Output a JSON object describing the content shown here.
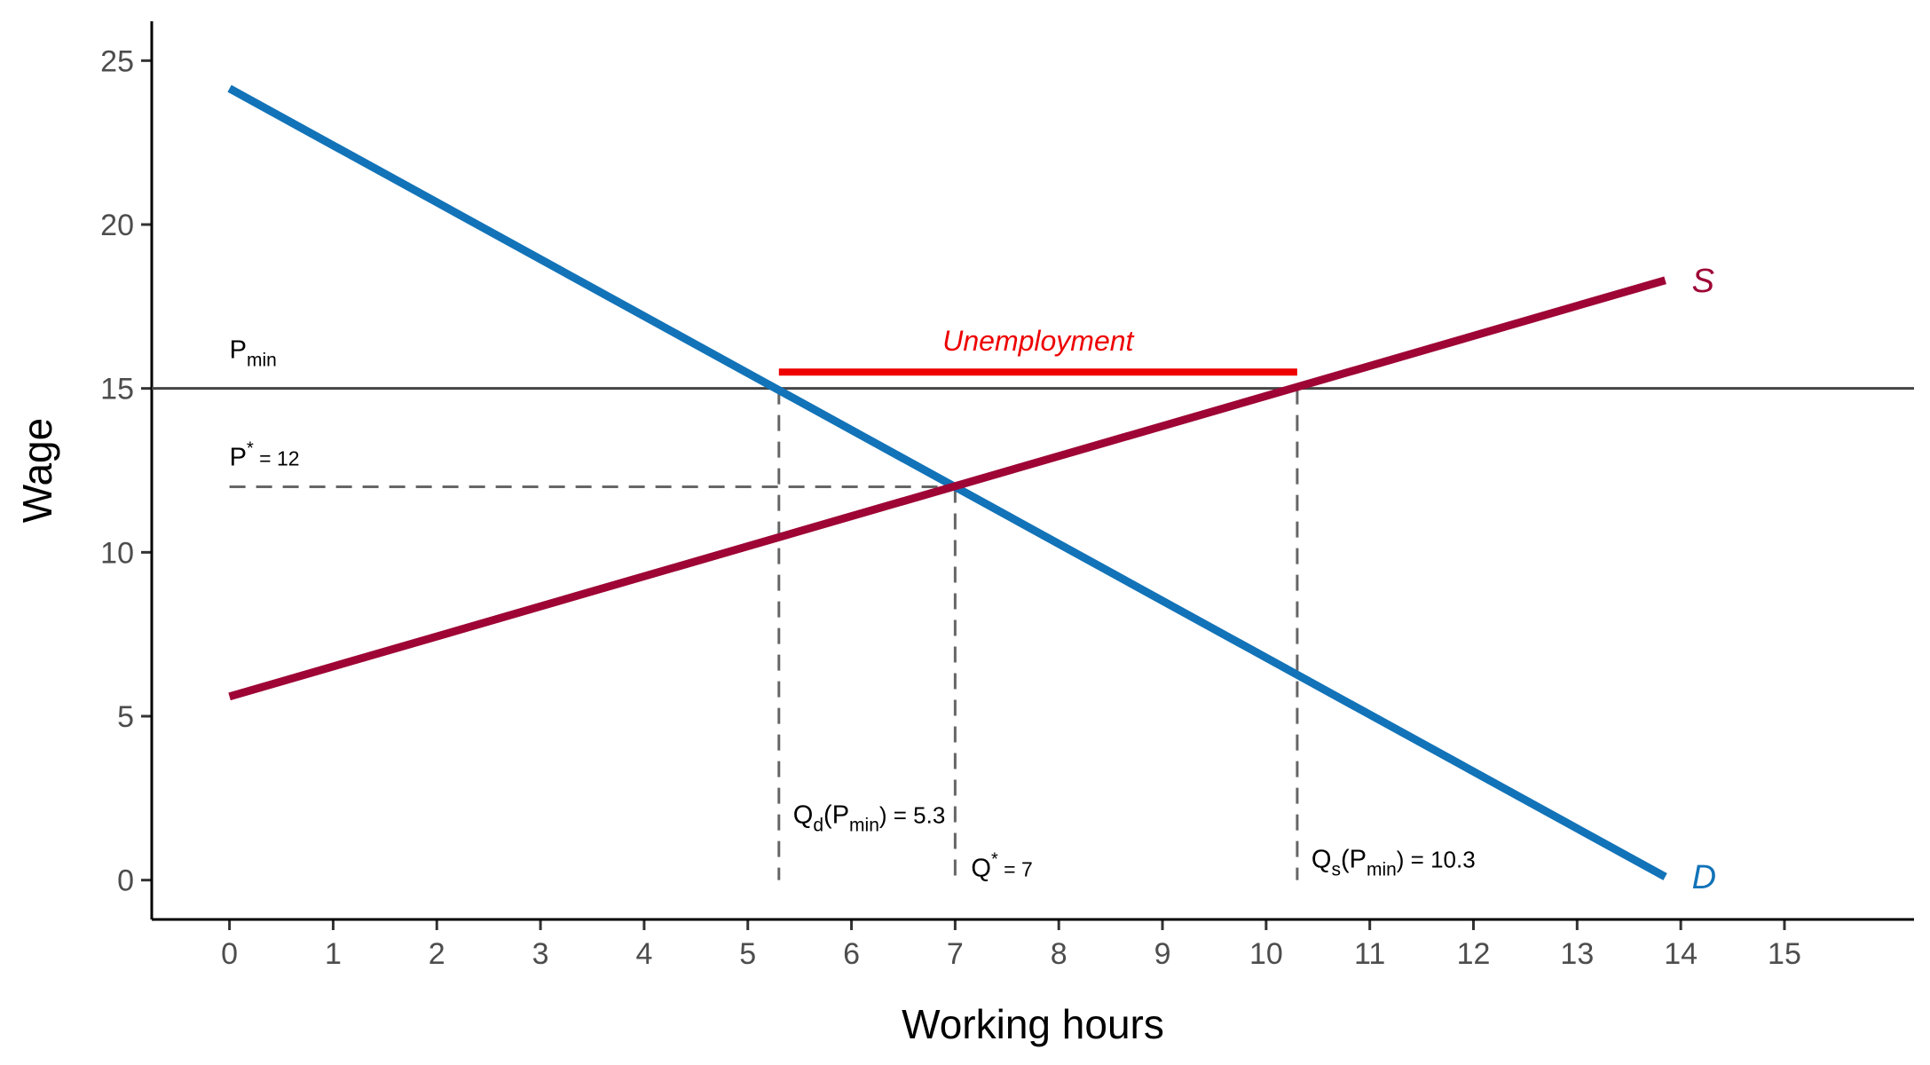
{
  "chart_data": {
    "type": "line",
    "xlabel": "Working hours",
    "ylabel": "Wage",
    "xlim": [
      -0.75,
      16.25
    ],
    "ylim": [
      -1.2,
      26.2
    ],
    "x_ticks": [
      0,
      1,
      2,
      3,
      4,
      5,
      6,
      7,
      8,
      9,
      10,
      11,
      12,
      13,
      14,
      15
    ],
    "y_ticks": [
      0,
      5,
      10,
      15,
      20,
      25
    ],
    "grid": false,
    "colors": {
      "demand": "#1273b8",
      "supply": "#9e0535",
      "unemployment": "#ee0000",
      "guide": "#666666",
      "hline": "#444444"
    },
    "series": [
      {
        "key": "demand",
        "name": "D",
        "x": [
          0,
          13.85
        ],
        "y": [
          24.15,
          0.1
        ]
      },
      {
        "key": "supply",
        "name": "S",
        "x": [
          0,
          13.85
        ],
        "y": [
          5.6,
          18.3
        ]
      }
    ],
    "min_price_line": {
      "y": 15
    },
    "equilibrium": {
      "x": 7,
      "y": 12
    },
    "qd_at_pmin": 5.3,
    "qs_at_pmin": 10.3,
    "unemployment_segment": {
      "x": [
        5.3,
        10.3
      ],
      "y": 15.5
    },
    "annotations": {
      "pmin_main": "P",
      "pmin_sub": "min",
      "pstar_main": "P",
      "pstar_sup": "*",
      "pstar_rest": " = 12",
      "qstar_main": "Q",
      "qstar_sup": "*",
      "qstar_rest": " = 7",
      "qd_main": "Q",
      "qd_sub": "d",
      "qd_open": "(P",
      "qd_sub2": "min",
      "qd_rest": ") = 5.3",
      "qs_main": "Q",
      "qs_sub": "s",
      "qs_open": "(P",
      "qs_sub2": "min",
      "qs_rest": ") = 10.3",
      "unemployment": "Unemployment",
      "supply_label": "S",
      "demand_label": "D"
    }
  }
}
